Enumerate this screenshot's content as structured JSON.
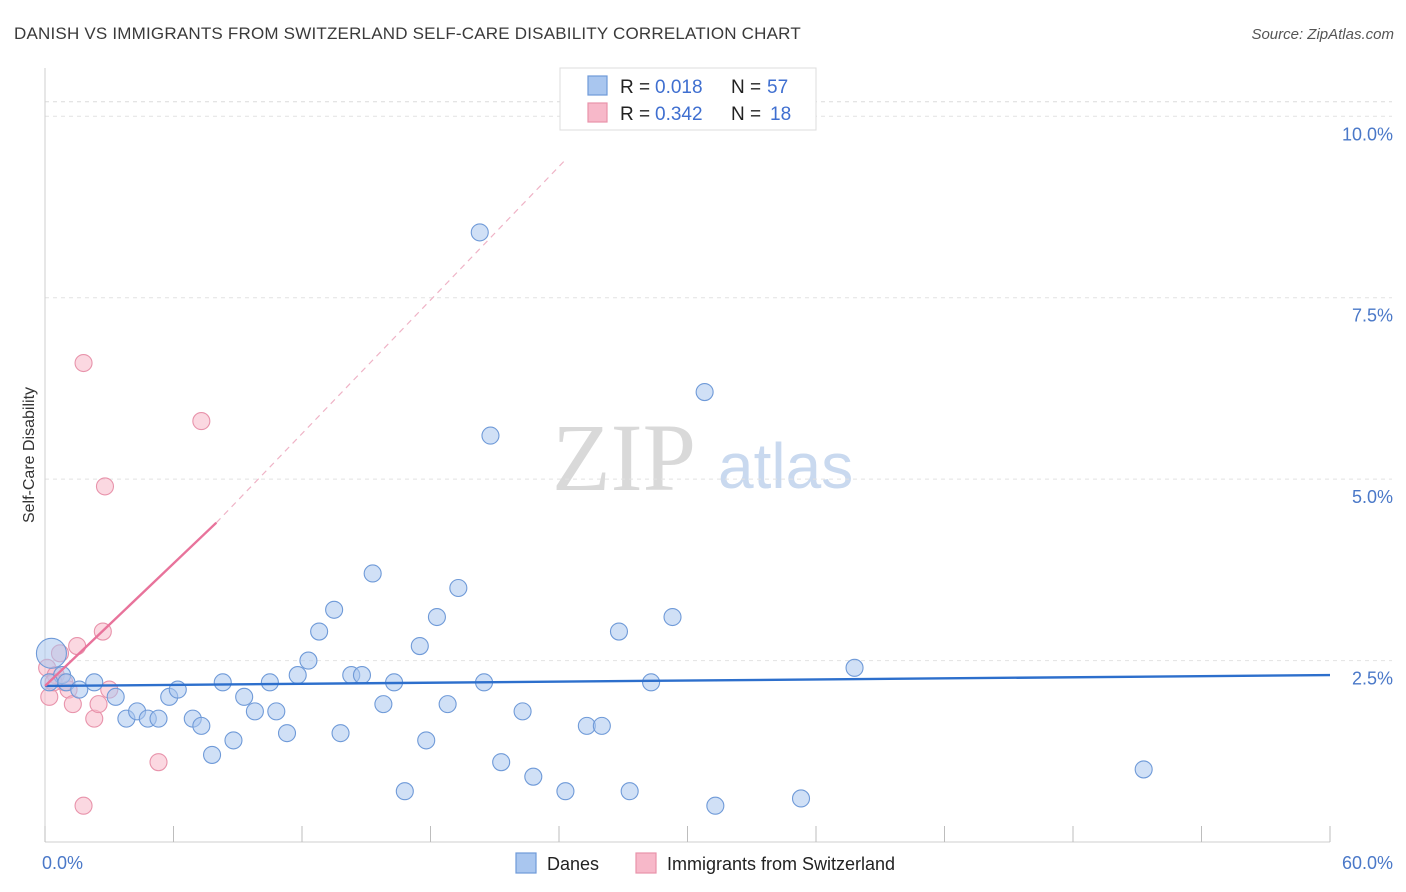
{
  "header": {
    "title": "DANISH VS IMMIGRANTS FROM SWITZERLAND SELF-CARE DISABILITY CORRELATION CHART",
    "source": "Source: ZipAtlas.com"
  },
  "watermark": {
    "zip": "ZIP",
    "atlas": "atlas"
  },
  "legend_top": {
    "rows": [
      {
        "r_label": "R = ",
        "r_value": "0.018",
        "n_label": "N = ",
        "n_value": "57",
        "color": "#a9c6ef"
      },
      {
        "r_label": "R = ",
        "r_value": "0.342",
        "n_label": "N = ",
        "n_value": "18",
        "color": "#f7b8c9"
      }
    ]
  },
  "chart_data": {
    "type": "scatter",
    "xlabel": "",
    "ylabel": "Self-Care Disability",
    "xlim": [
      0,
      60
    ],
    "ylim": [
      0,
      10.5
    ],
    "x_tick_labels": [
      "0.0%",
      "60.0%"
    ],
    "y_ticks": [
      2.5,
      5.0,
      7.5,
      10.0
    ],
    "y_tick_labels": [
      "2.5%",
      "5.0%",
      "7.5%",
      "10.0%"
    ],
    "grid": "horizontal dashed",
    "legend_placement": "top-center",
    "series": [
      {
        "name": "Danes",
        "color": "#a9c6ef",
        "stroke": "#6f9ad8",
        "trend_color": "#2d6fcc",
        "trend": {
          "x": [
            0,
            60
          ],
          "y": [
            2.15,
            2.3
          ]
        },
        "points": [
          [
            0.3,
            2.6
          ],
          [
            0.8,
            2.3
          ],
          [
            1.0,
            2.2
          ],
          [
            1.6,
            2.1
          ],
          [
            2.3,
            2.2
          ],
          [
            3.3,
            2.0
          ],
          [
            3.8,
            1.7
          ],
          [
            4.3,
            1.8
          ],
          [
            4.8,
            1.7
          ],
          [
            5.3,
            1.7
          ],
          [
            5.8,
            2.0
          ],
          [
            6.2,
            2.1
          ],
          [
            6.9,
            1.7
          ],
          [
            7.3,
            1.6
          ],
          [
            7.8,
            1.2
          ],
          [
            8.3,
            2.2
          ],
          [
            8.8,
            1.4
          ],
          [
            9.3,
            2.0
          ],
          [
            9.8,
            1.8
          ],
          [
            10.5,
            2.2
          ],
          [
            10.8,
            1.8
          ],
          [
            11.3,
            1.5
          ],
          [
            11.8,
            2.3
          ],
          [
            12.3,
            2.5
          ],
          [
            12.8,
            2.9
          ],
          [
            13.5,
            3.2
          ],
          [
            13.8,
            1.5
          ],
          [
            14.3,
            2.3
          ],
          [
            14.8,
            2.3
          ],
          [
            15.3,
            3.7
          ],
          [
            15.8,
            1.9
          ],
          [
            16.3,
            2.2
          ],
          [
            16.8,
            0.7
          ],
          [
            17.5,
            2.7
          ],
          [
            17.8,
            1.4
          ],
          [
            18.3,
            3.1
          ],
          [
            18.8,
            1.9
          ],
          [
            19.3,
            3.5
          ],
          [
            20.3,
            8.4
          ],
          [
            20.5,
            2.2
          ],
          [
            20.8,
            5.6
          ],
          [
            21.3,
            1.1
          ],
          [
            22.3,
            1.8
          ],
          [
            22.8,
            0.9
          ],
          [
            24.3,
            0.7
          ],
          [
            25.3,
            1.6
          ],
          [
            26.0,
            1.6
          ],
          [
            26.8,
            2.9
          ],
          [
            27.3,
            0.7
          ],
          [
            28.3,
            2.2
          ],
          [
            29.3,
            3.1
          ],
          [
            30.8,
            6.2
          ],
          [
            31.3,
            0.5
          ],
          [
            35.3,
            0.6
          ],
          [
            37.8,
            2.4
          ],
          [
            51.3,
            1.0
          ],
          [
            0.2,
            2.2
          ]
        ]
      },
      {
        "name": "Immigrants from Switzerland",
        "color": "#f7b8c9",
        "stroke": "#e893ab",
        "trend_color": "#e8739b",
        "trend": {
          "x": [
            0,
            8.0
          ],
          "y": [
            2.15,
            4.4
          ]
        },
        "trend_ext": {
          "x": [
            8.0,
            24.3
          ],
          "y": [
            4.4,
            9.4
          ]
        },
        "points": [
          [
            0.1,
            2.4
          ],
          [
            0.2,
            2.0
          ],
          [
            0.5,
            2.3
          ],
          [
            0.7,
            2.6
          ],
          [
            0.9,
            2.2
          ],
          [
            1.1,
            2.1
          ],
          [
            1.3,
            1.9
          ],
          [
            1.5,
            2.7
          ],
          [
            1.8,
            6.6
          ],
          [
            2.3,
            1.7
          ],
          [
            2.5,
            1.9
          ],
          [
            2.7,
            2.9
          ],
          [
            2.8,
            4.9
          ],
          [
            3.0,
            2.1
          ],
          [
            5.3,
            1.1
          ],
          [
            7.3,
            5.8
          ],
          [
            1.8,
            0.5
          ],
          [
            0.4,
            2.2
          ]
        ]
      }
    ]
  },
  "legend_bottom": {
    "items": [
      {
        "label": "Danes",
        "color": "#a9c6ef"
      },
      {
        "label": "Immigrants from Switzerland",
        "color": "#f7b8c9"
      }
    ]
  }
}
